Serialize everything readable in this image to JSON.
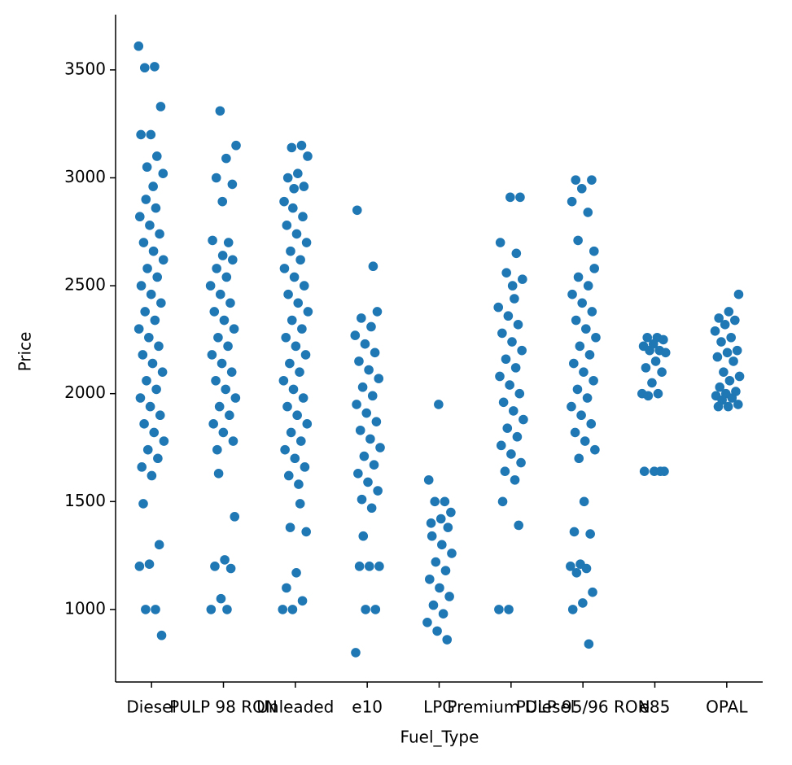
{
  "chart_data": {
    "type": "strip",
    "x_label": "Fuel_Type",
    "y_label": "Price",
    "categories": [
      "Diesel",
      "PULP 98 RON",
      "Unleaded",
      "e10",
      "LPG",
      "Premium Diesel",
      "PULP 95/96 RON",
      "e85",
      "OPAL"
    ],
    "color": "#1f77b4",
    "ylim": [
      664,
      3756
    ],
    "yticks": [
      1000,
      1500,
      2000,
      2500,
      3000,
      3500
    ],
    "values": [
      [
        3610,
        3515,
        3510,
        3330,
        3200,
        3200,
        3100,
        3050,
        3020,
        2960,
        1490,
        1300,
        1210,
        1200,
        1000,
        1000,
        880,
        1620,
        1660,
        1700,
        1740,
        1780,
        1820,
        1860,
        1900,
        1940,
        1980,
        2020,
        2060,
        2100,
        2140,
        2180,
        2220,
        2260,
        2300,
        2340,
        2380,
        2420,
        2460,
        2500,
        2540,
        2580,
        2620,
        2660,
        2700,
        2740,
        2780,
        2820,
        2860,
        2900
      ],
      [
        3310,
        3150,
        3090,
        3000,
        2970,
        2890,
        2710,
        2700,
        1630,
        1430,
        1230,
        1200,
        1190,
        1050,
        1000,
        1000,
        1740,
        1780,
        1820,
        1860,
        1900,
        1940,
        1980,
        2020,
        2060,
        2100,
        2140,
        2180,
        2220,
        2260,
        2300,
        2340,
        2380,
        2420,
        2460,
        2500,
        2540,
        2580,
        2620,
        2640
      ],
      [
        3150,
        3140,
        3100,
        3020,
        3000,
        2960,
        2950,
        2890,
        1490,
        1380,
        1360,
        1170,
        1100,
        1040,
        1000,
        1000,
        1580,
        1620,
        1660,
        1700,
        1740,
        1780,
        1820,
        1860,
        1900,
        1940,
        1980,
        2020,
        2060,
        2100,
        2140,
        2180,
        2220,
        2260,
        2300,
        2340,
        2380,
        2420,
        2460,
        2500,
        2540,
        2580,
        2620,
        2660,
        2700,
        2740,
        2780,
        2820,
        2860
      ],
      [
        2850,
        2590,
        1340,
        1200,
        1200,
        1200,
        1000,
        1000,
        800,
        1470,
        1510,
        1550,
        1590,
        1630,
        1670,
        1710,
        1750,
        1790,
        1830,
        1870,
        1910,
        1950,
        1990,
        2030,
        2070,
        2110,
        2150,
        2190,
        2230,
        2270,
        2310,
        2350,
        2380
      ],
      [
        1950,
        1600,
        1500,
        1500,
        1450,
        1420,
        1400,
        860,
        900,
        940,
        980,
        1020,
        1060,
        1100,
        1140,
        1180,
        1220,
        1260,
        1300,
        1340,
        1380
      ],
      [
        2910,
        2910,
        2700,
        2650,
        2560,
        2530,
        2500,
        1500,
        1390,
        1000,
        1000,
        1600,
        1640,
        1680,
        1720,
        1760,
        1800,
        1840,
        1880,
        1920,
        1960,
        2000,
        2040,
        2080,
        2120,
        2160,
        2200,
        2240,
        2280,
        2320,
        2360,
        2400,
        2440
      ],
      [
        2990,
        2990,
        2950,
        2890,
        2840,
        2710,
        2660,
        1500,
        1360,
        1350,
        1210,
        1200,
        1190,
        1170,
        1080,
        1030,
        1000,
        840,
        1700,
        1740,
        1780,
        1820,
        1860,
        1900,
        1940,
        1980,
        2020,
        2060,
        2100,
        2140,
        2180,
        2220,
        2260,
        2300,
        2340,
        2380,
        2420,
        2460,
        2500,
        2540,
        2580
      ],
      [
        2260,
        2260,
        2250,
        2230,
        2220,
        2200,
        2200,
        2190,
        2150,
        2120,
        2100,
        2050,
        2000,
        2000,
        1990,
        1640,
        1640,
        1640,
        1640
      ],
      [
        2460,
        2380,
        2350,
        2340,
        2320,
        2290,
        2260,
        2240,
        2200,
        2190,
        2170,
        2150,
        2100,
        2080,
        2060,
        2030,
        2010,
        2000,
        1990,
        1980,
        1970,
        1950,
        1940,
        1940
      ]
    ]
  }
}
